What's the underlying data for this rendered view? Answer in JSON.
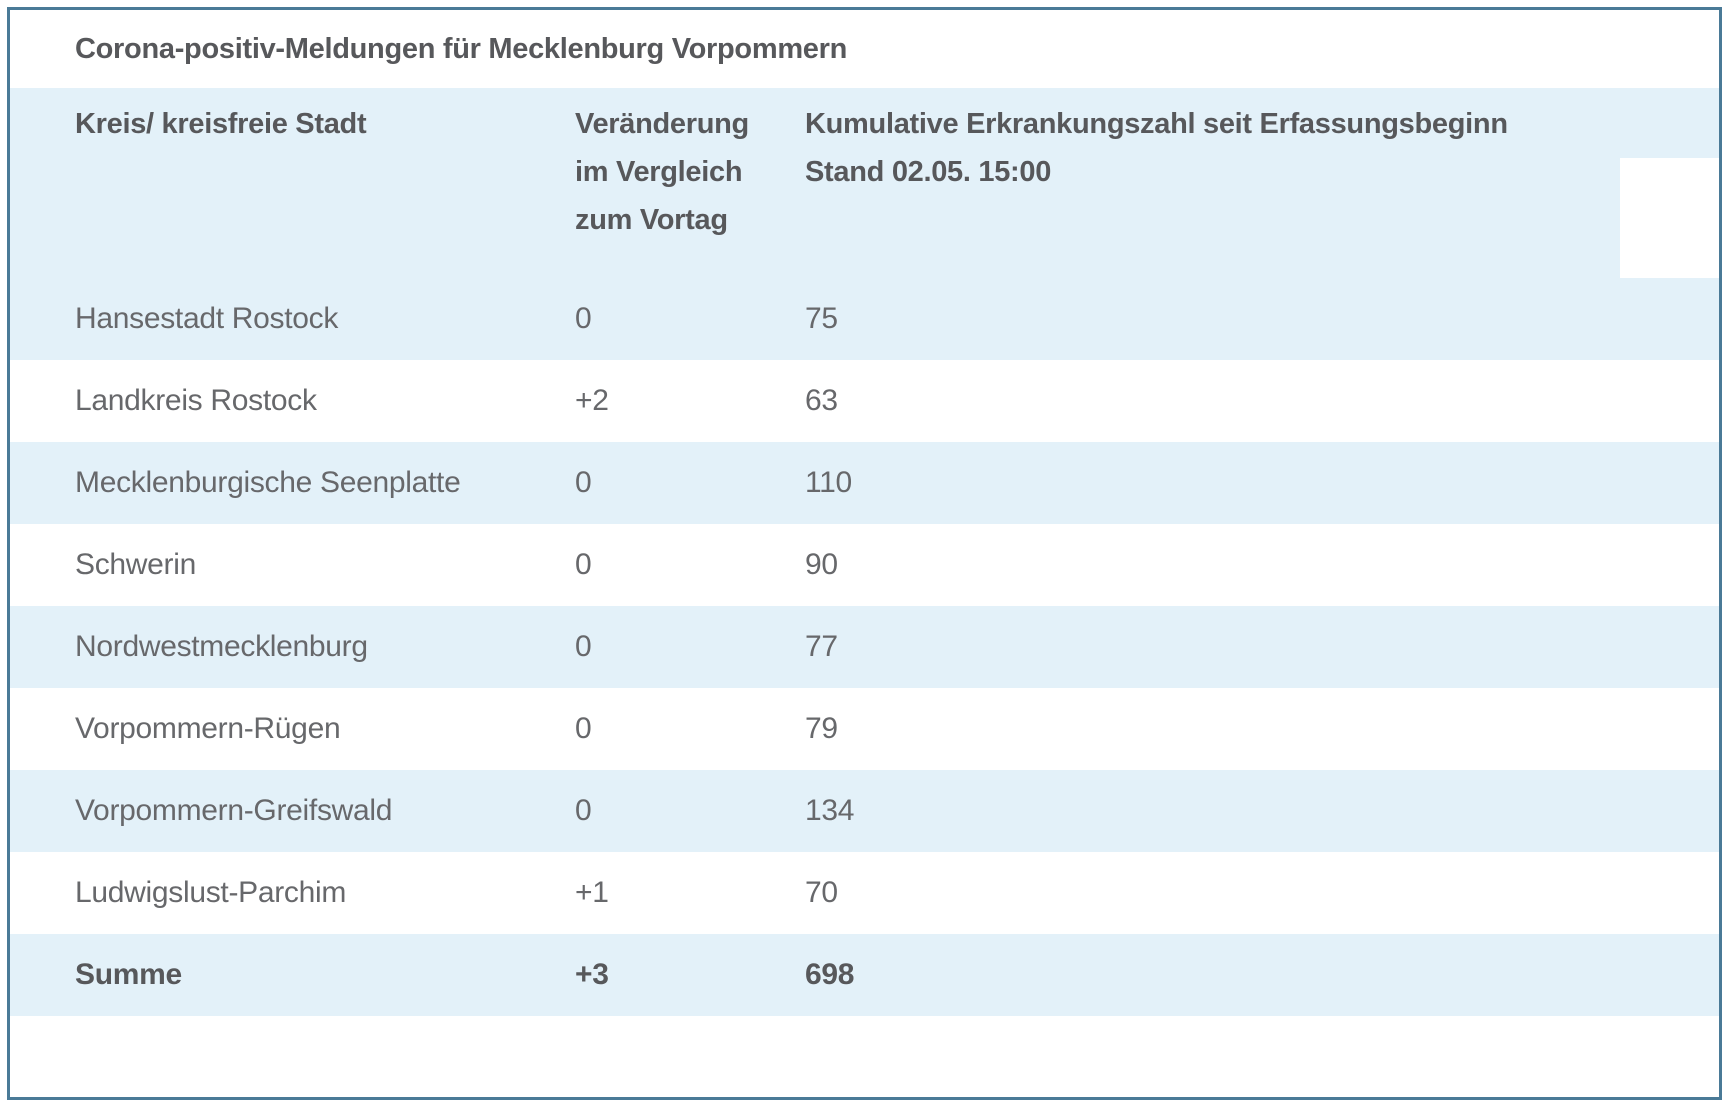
{
  "title": "Corona-positiv-Meldungen für Mecklenburg Vorpommern",
  "table": {
    "header": {
      "col1": "Kreis/ kreisfreie Stadt",
      "col2_line1": "Veränderung",
      "col2_line2": "im Vergleich",
      "col2_line3": "zum Vortag",
      "col3_line1": "Kumulative Erkrankungszahl seit Erfassungsbeginn",
      "col3_line2": "Stand 02.05. 15:00"
    },
    "rows": [
      {
        "name": "Hansestadt Rostock",
        "change": "0",
        "cumulative": "75"
      },
      {
        "name": "Landkreis Rostock",
        "change": "+2",
        "cumulative": "63"
      },
      {
        "name": "Mecklenburgische Seenplatte",
        "change": "0",
        "cumulative": "110"
      },
      {
        "name": "Schwerin",
        "change": "0",
        "cumulative": "90"
      },
      {
        "name": "Nordwestmecklenburg",
        "change": "0",
        "cumulative": "77"
      },
      {
        "name": "Vorpommern-Rügen",
        "change": "0",
        "cumulative": "79"
      },
      {
        "name": "Vorpommern-Greifswald",
        "change": "0",
        "cumulative": "134"
      },
      {
        "name": "Ludwigslust-Parchim",
        "change": "+1",
        "cumulative": "70"
      }
    ],
    "total_row": {
      "name": "Summe",
      "change": "+3",
      "cumulative": "698"
    }
  },
  "colors": {
    "border": "#4a7a97",
    "stripe": "#e3f1f9",
    "heading_text": "#57585b",
    "body_text": "#67686b"
  }
}
